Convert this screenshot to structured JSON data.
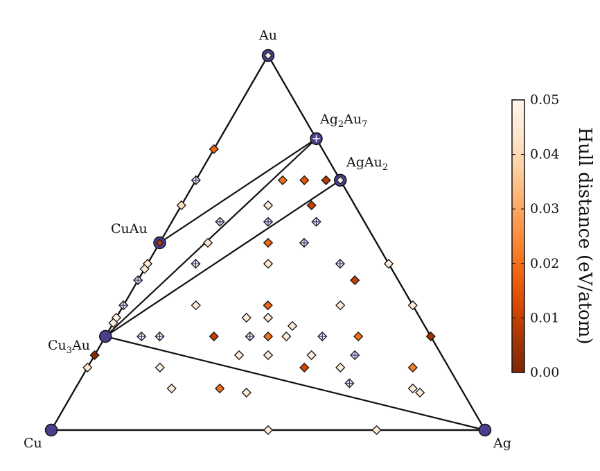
{
  "chart_data": {
    "type": "scatter",
    "coordinate_system": "ternary",
    "corners": {
      "top": "Au",
      "bottom_left": "Cu",
      "bottom_right": "Ag"
    },
    "colorbar": {
      "title": "Hull distance (eV/atom)",
      "ticks": [
        "0.00",
        "0.01",
        "0.02",
        "0.03",
        "0.04",
        "0.05"
      ],
      "min": 0.0,
      "max": 0.05,
      "colors": [
        "#7f2704",
        "#a63603",
        "#d94801",
        "#f16913",
        "#fd8d3c",
        "#fdae6b",
        "#fdd0a2",
        "#fee6ce",
        "#fff5eb"
      ]
    },
    "phases": [
      {
        "name": "Cu",
        "label": "Cu",
        "au": 0.0,
        "ag": 0.0
      },
      {
        "name": "Ag",
        "label": "Ag",
        "au": 0.0,
        "ag": 1.0
      },
      {
        "name": "Au",
        "label": "Au",
        "au": 1.0,
        "ag": 0.0
      },
      {
        "name": "CuAu",
        "label": "CuAu",
        "au": 0.5,
        "ag": 0.0
      },
      {
        "name": "Cu3Au",
        "label": "Cu",
        "sub": "3",
        "after": "Au",
        "au": 0.25,
        "ag": 0.0
      },
      {
        "name": "Ag2Au7",
        "label": "Ag",
        "sub": "2",
        "after": "Au",
        "sub2": "7",
        "au": 0.778,
        "ag": 0.222
      },
      {
        "name": "AgAu2",
        "label": "AgAu",
        "sub": "2",
        "au": 0.667,
        "ag": 0.333
      }
    ],
    "hull_edges": [
      [
        "Cu",
        "Ag"
      ],
      [
        "Cu",
        "Cu3Au"
      ],
      [
        "Cu3Au",
        "CuAu"
      ],
      [
        "CuAu",
        "Au"
      ],
      [
        "Au",
        "Ag2Au7"
      ],
      [
        "Ag2Au7",
        "AgAu2"
      ],
      [
        "AgAu2",
        "Ag"
      ],
      [
        "Cu3Au",
        "Ag"
      ],
      [
        "Cu3Au",
        "Ag2Au7"
      ],
      [
        "Cu3Au",
        "AgAu2"
      ],
      [
        "CuAu",
        "Ag2Au7"
      ]
    ],
    "points": [
      {
        "au": 1.0,
        "ag": 0.0,
        "e": 0.045,
        "cross": false
      },
      {
        "au": 0.75,
        "ag": 0.0,
        "e": 0.018,
        "cross": false
      },
      {
        "au": 0.667,
        "ag": 0.0,
        "e": 0.05,
        "cross": true
      },
      {
        "au": 0.6,
        "ag": 0.0,
        "e": 0.042,
        "cross": false
      },
      {
        "au": 0.5,
        "ag": 0.0,
        "e": 0.005,
        "cross": true
      },
      {
        "au": 0.444,
        "ag": 0.0,
        "e": 0.046,
        "cross": false
      },
      {
        "au": 0.43,
        "ag": 0.0,
        "e": 0.046,
        "cross": false
      },
      {
        "au": 0.4,
        "ag": 0.0,
        "e": 0.05,
        "cross": true
      },
      {
        "au": 0.333,
        "ag": 0.0,
        "e": 0.05,
        "cross": true
      },
      {
        "au": 0.3,
        "ag": 0.0,
        "e": 0.048,
        "cross": false
      },
      {
        "au": 0.286,
        "ag": 0.0,
        "e": 0.047,
        "cross": false
      },
      {
        "au": 0.2,
        "ag": 0.0,
        "e": 0.002,
        "cross": false
      },
      {
        "au": 0.167,
        "ag": 0.0,
        "e": 0.045,
        "cross": false
      },
      {
        "au": 0.778,
        "ag": 0.222,
        "e": 0.05,
        "cross": true
      },
      {
        "au": 0.667,
        "ag": 0.333,
        "e": 0.045,
        "cross": false
      },
      {
        "au": 0.444,
        "ag": 0.556,
        "e": 0.046,
        "cross": false
      },
      {
        "au": 0.333,
        "ag": 0.667,
        "e": 0.046,
        "cross": false
      },
      {
        "au": 0.6,
        "ag": 0.2,
        "e": 0.046,
        "cross": false
      },
      {
        "au": 0.444,
        "ag": 0.111,
        "e": 0.05,
        "cross": true
      },
      {
        "au": 0.25,
        "ag": 0.125,
        "e": 0.05,
        "cross": true
      },
      {
        "au": 0.25,
        "ag": 0.25,
        "e": 0.01,
        "cross": false
      },
      {
        "au": 0.25,
        "ag": 0.375,
        "e": 0.02,
        "cross": false
      },
      {
        "au": 0.25,
        "ag": 0.5,
        "e": 0.02,
        "cross": true
      },
      {
        "au": 0.167,
        "ag": 0.167,
        "e": 0.046,
        "cross": false
      },
      {
        "au": 0.111,
        "ag": 0.222,
        "e": 0.046,
        "cross": false
      },
      {
        "au": 0.2,
        "ag": 0.4,
        "e": 0.046,
        "cross": false
      },
      {
        "au": 0.167,
        "ag": 0.5,
        "e": 0.012,
        "cross": false
      },
      {
        "au": 0.1,
        "ag": 0.4,
        "e": 0.046,
        "cross": false
      },
      {
        "au": 0.111,
        "ag": 0.778,
        "e": 0.046,
        "cross": false
      },
      {
        "au": 0.667,
        "ag": 0.2,
        "e": 0.02,
        "cross": false
      },
      {
        "au": 0.667,
        "ag": 0.25,
        "e": 0.015,
        "cross": false
      },
      {
        "au": 0.667,
        "ag": 0.3,
        "e": 0.008,
        "cross": false
      },
      {
        "au": 0.6,
        "ag": 0.3,
        "e": 0.01,
        "cross": false
      },
      {
        "au": 0.556,
        "ag": 0.333,
        "e": 0.005,
        "cross": true
      },
      {
        "au": 0.556,
        "ag": 0.222,
        "e": 0.05,
        "cross": true
      },
      {
        "au": 0.5,
        "ag": 0.25,
        "e": 0.018,
        "cross": false
      },
      {
        "au": 0.5,
        "ag": 0.333,
        "e": 0.018,
        "cross": true
      },
      {
        "au": 0.444,
        "ag": 0.278,
        "e": 0.046,
        "cross": false
      },
      {
        "au": 0.444,
        "ag": 0.444,
        "e": 0.05,
        "cross": true
      },
      {
        "au": 0.4,
        "ag": 0.5,
        "e": 0.01,
        "cross": false
      },
      {
        "au": 0.333,
        "ag": 0.333,
        "e": 0.018,
        "cross": false
      },
      {
        "au": 0.333,
        "ag": 0.167,
        "e": 0.046,
        "cross": false
      },
      {
        "au": 0.333,
        "ag": 0.5,
        "e": 0.046,
        "cross": false
      },
      {
        "au": 0.3,
        "ag": 0.3,
        "e": 0.046,
        "cross": false
      },
      {
        "au": 0.3,
        "ag": 0.35,
        "e": 0.045,
        "cross": false
      },
      {
        "au": 0.278,
        "ag": 0.417,
        "e": 0.046,
        "cross": false
      },
      {
        "au": 0.25,
        "ag": 0.333,
        "e": 0.012,
        "cross": true
      },
      {
        "au": 0.25,
        "ag": 0.417,
        "e": 0.046,
        "cross": false
      },
      {
        "au": 0.25,
        "ag": 0.583,
        "e": 0.02,
        "cross": false
      },
      {
        "au": 0.25,
        "ag": 0.75,
        "e": 0.005,
        "cross": false
      },
      {
        "au": 0.2,
        "ag": 0.333,
        "e": 0.046,
        "cross": false
      },
      {
        "au": 0.2,
        "ag": 0.5,
        "e": 0.046,
        "cross": false
      },
      {
        "au": 0.2,
        "ag": 0.6,
        "e": 0.05,
        "cross": true
      },
      {
        "au": 0.167,
        "ag": 0.583,
        "e": 0.046,
        "cross": false
      },
      {
        "au": 0.125,
        "ag": 0.625,
        "e": 0.018,
        "cross": true
      },
      {
        "au": 0.167,
        "ag": 0.75,
        "e": 0.022,
        "cross": false
      },
      {
        "au": 0.25,
        "ag": 0.083,
        "e": 0.05,
        "cross": true
      },
      {
        "au": 0.111,
        "ag": 0.333,
        "e": 0.02,
        "cross": false
      },
      {
        "au": 0.1,
        "ag": 0.8,
        "e": 0.046,
        "cross": false
      },
      {
        "au": 0.0,
        "ag": 0.5,
        "e": 0.046,
        "cross": false
      },
      {
        "au": 0.0,
        "ag": 0.75,
        "e": 0.046,
        "cross": false
      },
      {
        "au": 0.5,
        "ag": 0.111,
        "e": 0.045,
        "cross": false
      },
      {
        "au": 0.556,
        "ag": 0.111,
        "e": 0.05,
        "cross": true
      }
    ]
  }
}
